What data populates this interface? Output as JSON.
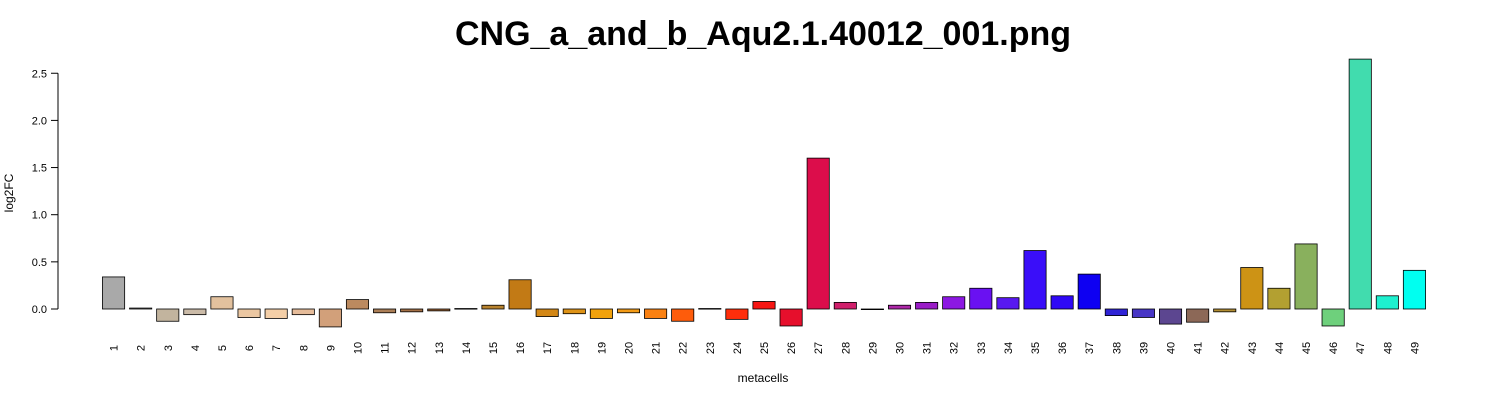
{
  "chart_data": {
    "type": "bar",
    "title": "CNG_a_and_b_Aqu2.1.40012_001.png",
    "xlabel": "metacells",
    "ylabel": "log2FC",
    "ylim": [
      -0.2,
      2.65
    ],
    "yticks": [
      "0.0",
      "0.5",
      "1.0",
      "1.5",
      "2.0",
      "2.5"
    ],
    "grid": false,
    "legend": "none",
    "categories": [
      "1",
      "2",
      "3",
      "4",
      "5",
      "6",
      "7",
      "8",
      "9",
      "10",
      "11",
      "12",
      "13",
      "14",
      "15",
      "16",
      "17",
      "18",
      "19",
      "20",
      "21",
      "22",
      "23",
      "24",
      "25",
      "26",
      "27",
      "28",
      "29",
      "30",
      "31",
      "32",
      "33",
      "34",
      "35",
      "36",
      "37",
      "38",
      "39",
      "40",
      "41",
      "42",
      "43",
      "44",
      "45",
      "46",
      "47",
      "48",
      "49"
    ],
    "values": [
      0.34,
      0.01,
      -0.13,
      -0.06,
      0.13,
      -0.09,
      -0.1,
      -0.06,
      -0.19,
      0.1,
      -0.04,
      -0.03,
      -0.02,
      0.005,
      0.04,
      0.31,
      -0.08,
      -0.05,
      -0.1,
      -0.04,
      -0.1,
      -0.13,
      0.005,
      -0.11,
      0.08,
      -0.18,
      1.6,
      0.07,
      -0.005,
      0.04,
      0.07,
      0.13,
      0.22,
      0.12,
      0.62,
      0.14,
      0.37,
      -0.07,
      -0.09,
      -0.16,
      -0.14,
      -0.03,
      0.44,
      0.22,
      0.69,
      -0.18,
      2.65,
      0.14,
      0.41
    ],
    "colors": [
      "#A9A9A9",
      "#D3D3D3",
      "#C2B49E",
      "#CBBBA8",
      "#E2C19E",
      "#EBC7A2",
      "#F4CFA8",
      "#E6BC9A",
      "#D2A07A",
      "#BC8A5F",
      "#AB7E56",
      "#A47046",
      "#9E6535",
      "#C8B4A0",
      "#B8832E",
      "#C27A15",
      "#D38715",
      "#DE9317",
      "#F2A20C",
      "#F39B16",
      "#FA8112",
      "#FE5C0B",
      "#FC4B05",
      "#FF2E0B",
      "#F71613",
      "#E60F2C",
      "#DC0D4B",
      "#D01F6B",
      "#B81C82",
      "#AD28A8",
      "#9A1CC7",
      "#8C18E2",
      "#6A11F2",
      "#5819F0",
      "#3A0EF9",
      "#2F09F6",
      "#0E00F2",
      "#2F23D6",
      "#4735C5",
      "#5C4690",
      "#8C6857",
      "#B38E33",
      "#CD9315",
      "#B3A031",
      "#89B05D",
      "#6ED07C",
      "#41DCAE",
      "#1EF0CF",
      "#00FFF0"
    ]
  }
}
